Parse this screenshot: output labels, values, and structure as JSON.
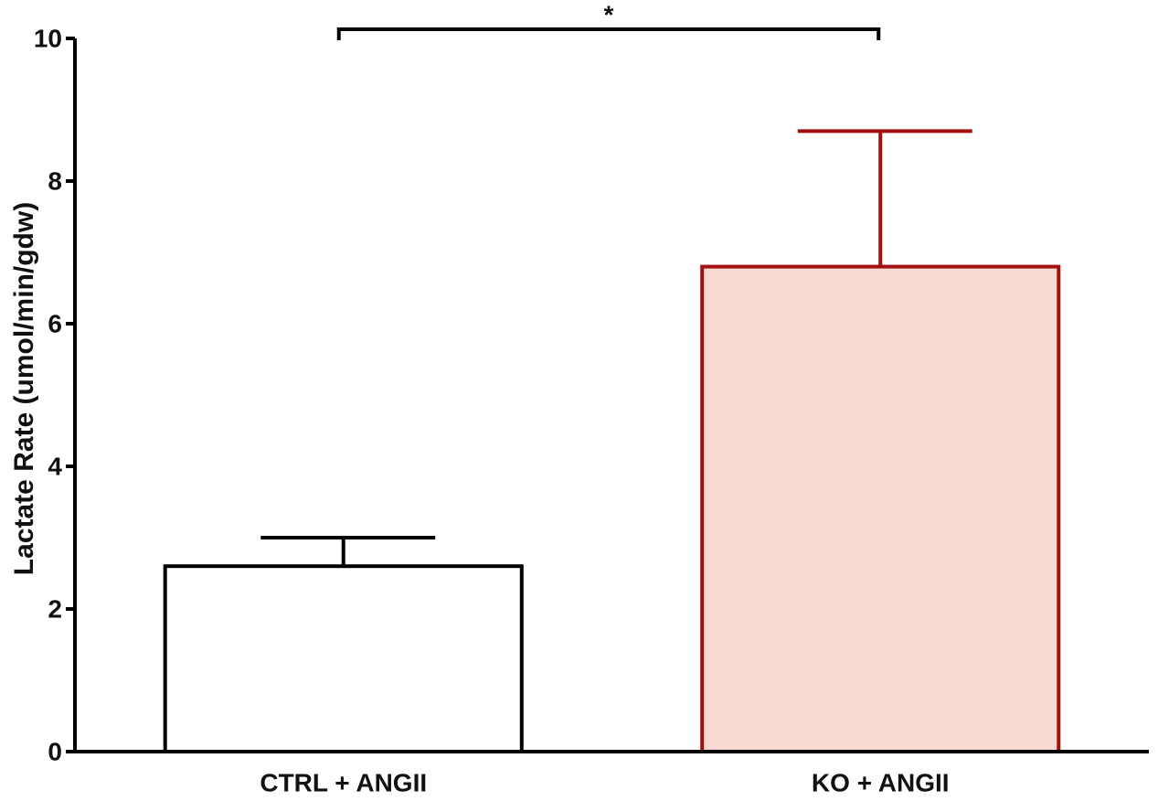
{
  "chart_data": {
    "type": "bar",
    "y_label": "Lactate Rate (umol/min/gdw)",
    "categories": [
      "CTRL + ANGII",
      "KO + ANGII"
    ],
    "values": [
      2.6,
      6.8
    ],
    "errors": [
      0.4,
      1.9
    ],
    "colors": [
      "#ffffff",
      "#f8d9d3"
    ],
    "edge_colors": [
      "#000000",
      "#a30f0f"
    ],
    "ylim": [
      0,
      10
    ],
    "yticks": [
      0,
      2,
      4,
      6,
      8,
      10
    ],
    "annotation": "*"
  }
}
